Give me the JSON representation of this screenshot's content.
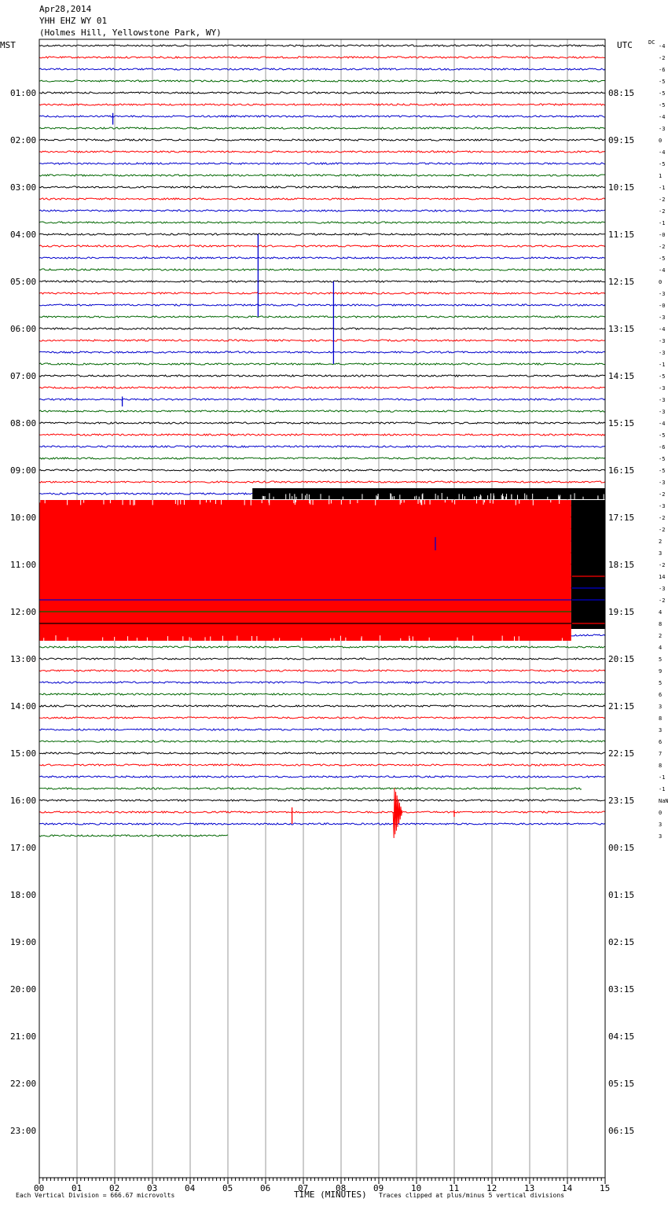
{
  "header": {
    "date": "Apr28,2014",
    "station": "YHH EHZ WY 01",
    "location": "(Holmes Hill, Yellowstone Park, WY)"
  },
  "left_zone_label": "MST",
  "right_zone_label": "UTC",
  "dc_label": "DC",
  "footer": {
    "scale_note": "Each Vertical Division =  666.67 microvolts",
    "xlabel": "TIME (MINUTES)",
    "clip_note": "Traces clipped at plus/minus 5 vertical divisions"
  },
  "trace_colors": [
    "#000000",
    "#ff0000",
    "#0000cc",
    "#006600"
  ],
  "chart_data": {
    "type": "line",
    "title": "Apr28,2014",
    "xlabel": "TIME (MINUTES)",
    "ylabel": "",
    "xlim": [
      0,
      15
    ],
    "x_ticks": [
      "00",
      "01",
      "02",
      "03",
      "04",
      "05",
      "06",
      "07",
      "08",
      "09",
      "10",
      "11",
      "12",
      "13",
      "14",
      "15"
    ],
    "minutes_per_trace": 15,
    "traces_per_hour": 4,
    "hour_labels_mst": [
      "01:00",
      "02:00",
      "03:00",
      "04:00",
      "05:00",
      "06:00",
      "07:00",
      "08:00",
      "09:00",
      "10:00",
      "11:00",
      "12:00",
      "13:00",
      "14:00",
      "15:00",
      "16:00",
      "17:00",
      "18:00",
      "19:00",
      "20:00",
      "21:00",
      "22:00",
      "23:00"
    ],
    "hour_labels_utc": [
      "08:15",
      "09:15",
      "10:15",
      "11:15",
      "12:15",
      "13:15",
      "14:15",
      "15:15",
      "16:15",
      "17:15",
      "18:15",
      "19:15",
      "20:15",
      "21:15",
      "22:15",
      "23:15",
      "00:15",
      "01:15",
      "02:15",
      "03:15",
      "04:15",
      "05:15",
      "06:15"
    ],
    "dc_offsets": [
      "-4",
      "-2",
      "-6",
      "-5",
      "-5",
      "-5",
      "-4",
      "-3",
      "0",
      "-4",
      "-5",
      "1",
      "-1",
      "-2",
      "-2",
      "-1",
      "-0",
      "-2",
      "-5",
      "-4",
      "0",
      "-3",
      "-0",
      "-3",
      "-4",
      "-3",
      "-3",
      "-1",
      "-5",
      "-3",
      "-3",
      "-3",
      "-4",
      "-5",
      "-6",
      "-5",
      "-5",
      "-3",
      "-2",
      "-3",
      "-2",
      "-2",
      "2",
      "3",
      "-2",
      "14",
      "-3",
      "-2",
      "4",
      "8",
      "2",
      "4",
      "5",
      "9",
      "5",
      "6",
      "3",
      "8",
      "3",
      "6",
      "7",
      "8",
      "-1",
      "-1",
      "NaN",
      "0",
      "3",
      "3"
    ],
    "traces_recorded": 68,
    "last_trace_end_minute": 5.0,
    "clipped_interval": {
      "start_trace": 38,
      "start_minute": 5.65,
      "end_trace": 50,
      "end_minute": 14.1
    },
    "events": [
      {
        "trace": 6,
        "minute": 1.95,
        "amplitude_divisions": 0.7
      },
      {
        "trace": 18,
        "minute": 5.8,
        "amplitude_divisions": 5
      },
      {
        "trace": 22,
        "minute": 7.8,
        "amplitude_divisions": 5
      },
      {
        "trace": 30,
        "minute": 2.2,
        "amplitude_divisions": 0.6
      },
      {
        "trace": 42,
        "minute": 10.5,
        "amplitude_divisions": 0.8
      },
      {
        "trace": 65,
        "minute": 6.7,
        "amplitude_divisions": 1.0
      },
      {
        "trace": 65,
        "minute": 9.4,
        "amplitude_divisions": 2.2
      },
      {
        "trace": 65,
        "minute": 11.0,
        "amplitude_divisions": 0.4
      }
    ]
  }
}
